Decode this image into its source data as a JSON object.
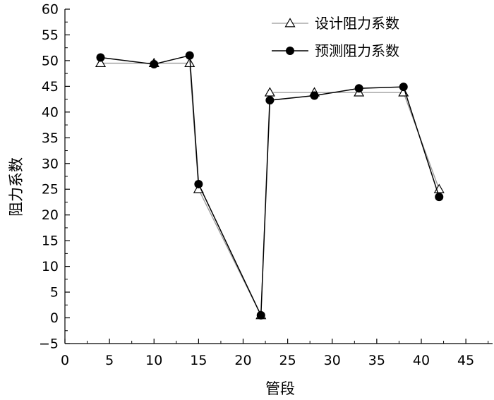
{
  "chart_data": {
    "type": "line",
    "xlabel": "管段",
    "ylabel": "阻力系数",
    "xlim": [
      0,
      48
    ],
    "ylim": [
      -5,
      60
    ],
    "x_ticks": [
      0,
      5,
      10,
      15,
      20,
      25,
      30,
      35,
      40,
      45
    ],
    "y_ticks": [
      -5,
      0,
      5,
      10,
      15,
      20,
      25,
      30,
      35,
      40,
      45,
      50,
      55,
      60
    ],
    "grid": false,
    "legend_position": "top-right",
    "series": [
      {
        "name": "设计阻力系数",
        "marker": "open-triangle",
        "line_color": "#999999",
        "x": [
          4,
          10,
          14,
          15,
          22,
          23,
          28,
          33,
          38,
          42
        ],
        "y": [
          49.5,
          49.5,
          49.5,
          25.0,
          0.5,
          43.8,
          43.8,
          43.8,
          43.8,
          25.0
        ]
      },
      {
        "name": "预测阻力系数",
        "marker": "filled-circle",
        "line_color": "#000000",
        "x": [
          4,
          10,
          14,
          15,
          22,
          23,
          28,
          33,
          38,
          42
        ],
        "y": [
          50.6,
          49.3,
          51.0,
          26.0,
          0.5,
          42.3,
          43.2,
          44.6,
          44.9,
          23.5
        ]
      }
    ]
  }
}
